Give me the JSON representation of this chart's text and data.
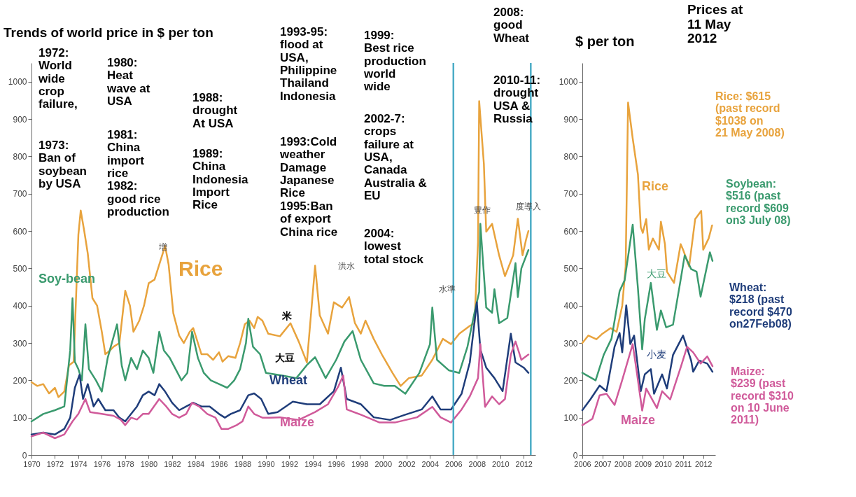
{
  "chart_data": [
    {
      "type": "line",
      "title": "Trends of world price in $ per ton",
      "xlim": [
        1970,
        2013
      ],
      "xticks": [
        1970,
        1972,
        1974,
        1976,
        1978,
        1980,
        1982,
        1984,
        1986,
        1988,
        1990,
        1992,
        1994,
        1996,
        1998,
        2000,
        2002,
        2004,
        2006,
        2008,
        2010,
        2012
      ],
      "ylim": [
        0,
        1050
      ],
      "yticks": [
        0,
        100,
        200,
        300,
        400,
        500,
        600,
        700,
        800,
        900,
        1000
      ],
      "series": [
        {
          "name": "Rice",
          "color": "#e8a33d",
          "x": [
            1970,
            1970.5,
            1971,
            1971.5,
            1972,
            1972.3,
            1972.8,
            1973.2,
            1973.6,
            1974,
            1974.2,
            1974.5,
            1974.8,
            1975.2,
            1975.6,
            1976,
            1976.3,
            1976.7,
            1977,
            1977.5,
            1978,
            1978.4,
            1978.7,
            1979.2,
            1979.6,
            1980,
            1980.5,
            1981,
            1981.4,
            1981.7,
            1982.1,
            1982.6,
            1983,
            1983.5,
            1983.8,
            1984.2,
            1984.5,
            1985,
            1985.5,
            1986,
            1986.3,
            1986.8,
            1987.4,
            1987.8,
            1988.2,
            1988.6,
            1989,
            1989.3,
            1989.7,
            1990.2,
            1991.2,
            1992.1,
            1992.8,
            1993.5,
            1994.2,
            1994.6,
            1995.3,
            1995.8,
            1996.5,
            1997.1,
            1997.6,
            1998.1,
            1998.5,
            1999.2,
            1999.9,
            2000.8,
            2001.5,
            2002.2,
            2003.3,
            2004.2,
            2005.1,
            2005.8,
            2006.5,
            2007.4,
            2007.8,
            2008.1,
            2008.2,
            2008.6,
            2008.8,
            2009.3,
            2009.9,
            2010.4,
            2011.1,
            2011.5,
            2011.9,
            2012.2,
            2012.4
          ],
          "values": [
            195,
            185,
            190,
            165,
            180,
            155,
            170,
            240,
            250,
            590,
            655,
            600,
            540,
            420,
            400,
            330,
            270,
            280,
            290,
            300,
            440,
            400,
            330,
            360,
            400,
            460,
            470,
            520,
            560,
            510,
            380,
            320,
            300,
            330,
            340,
            300,
            270,
            270,
            255,
            275,
            250,
            265,
            260,
            300,
            350,
            360,
            340,
            370,
            360,
            325,
            318,
            353,
            304,
            248,
            507,
            374,
            325,
            409,
            395,
            423,
            353,
            325,
            360,
            311,
            269,
            220,
            185,
            206,
            213,
            255,
            311,
            297,
            325,
            346,
            353,
            570,
            948,
            780,
            598,
            619,
            535,
            479,
            535,
            633,
            535,
            577,
            600
          ]
        },
        {
          "name": "Soy-bean",
          "color": "#3a9a6e",
          "x": [
            1970,
            1971,
            1972,
            1972.8,
            1973.3,
            1973.5,
            1973.7,
            1974,
            1974.3,
            1974.6,
            1974.9,
            1975.5,
            1976,
            1976.5,
            1977.3,
            1977.7,
            1978,
            1978.5,
            1979,
            1979.5,
            1980,
            1980.4,
            1980.9,
            1981.3,
            1981.8,
            1982.3,
            1982.8,
            1983.3,
            1983.7,
            1984.2,
            1984.7,
            1985.3,
            1986,
            1986.7,
            1987.3,
            1987.8,
            1988.3,
            1988.5,
            1988.9,
            1989.5,
            1990,
            1991.4,
            1992.6,
            1993.5,
            1994.2,
            1995.1,
            1996,
            1996.7,
            1997.4,
            1998.1,
            1999.2,
            2000.1,
            2001,
            2001.9,
            2003.1,
            2004,
            2004.2,
            2004.6,
            2005.6,
            2006.5,
            2007.2,
            2007.8,
            2008.2,
            2008.3,
            2008.8,
            2009.3,
            2009.5,
            2009.9,
            2010.6,
            2011.3,
            2011.5,
            2011.8,
            2012.4
          ],
          "values": [
            90,
            110,
            120,
            130,
            280,
            420,
            250,
            230,
            200,
            350,
            230,
            200,
            170,
            260,
            350,
            240,
            200,
            260,
            230,
            280,
            260,
            220,
            330,
            280,
            260,
            230,
            200,
            220,
            330,
            260,
            220,
            200,
            190,
            180,
            200,
            230,
            300,
            365,
            290,
            270,
            220,
            213,
            206,
            241,
            262,
            206,
            255,
            304,
            332,
            255,
            192,
            185,
            185,
            164,
            220,
            297,
            395,
            255,
            227,
            220,
            290,
            381,
            437,
            619,
            395,
            381,
            444,
            353,
            367,
            514,
            423,
            500,
            549
          ]
        },
        {
          "name": "Wheat",
          "color": "#1f3d7a",
          "x": [
            1970,
            1971,
            1972,
            1972.8,
            1973.3,
            1973.7,
            1974.1,
            1974.4,
            1974.8,
            1975.3,
            1975.7,
            1976.3,
            1977,
            1977.5,
            1978,
            1978.5,
            1979,
            1979.5,
            1980,
            1980.5,
            1980.9,
            1981.4,
            1982,
            1982.6,
            1983.2,
            1983.8,
            1984.5,
            1985.2,
            1986,
            1986.5,
            1987,
            1987.8,
            1988.5,
            1989,
            1989.6,
            1990.2,
            1991,
            1992.3,
            1993.5,
            1994.6,
            1995.8,
            1996.4,
            1996.9,
            1998.1,
            1999.2,
            2000.6,
            2001.9,
            2003.3,
            2004.2,
            2004.9,
            2005.8,
            2006.7,
            2007.4,
            2008,
            2008.3,
            2008.8,
            2009.5,
            2010.2,
            2010.9,
            2011.3,
            2012,
            2012.4
          ],
          "values": [
            55,
            60,
            55,
            70,
            100,
            180,
            215,
            150,
            190,
            130,
            150,
            120,
            120,
            100,
            90,
            110,
            130,
            160,
            170,
            160,
            190,
            170,
            140,
            120,
            130,
            140,
            130,
            130,
            110,
            100,
            110,
            120,
            160,
            165,
            150,
            110,
            115,
            143,
            136,
            136,
            171,
            234,
            150,
            136,
            101,
            94,
            108,
            122,
            157,
            122,
            122,
            164,
            248,
            409,
            283,
            234,
            206,
            171,
            325,
            248,
            234,
            220
          ]
        },
        {
          "name": "Maize",
          "color": "#d05a9a",
          "x": [
            1970,
            1971,
            1972,
            1972.8,
            1973.5,
            1974,
            1974.6,
            1975,
            1976,
            1977,
            1977.6,
            1978,
            1978.5,
            1979,
            1979.5,
            1980,
            1980.9,
            1981.5,
            1982,
            1982.6,
            1983.2,
            1983.7,
            1984.3,
            1985,
            1985.7,
            1986.2,
            1986.8,
            1987.5,
            1988,
            1988.5,
            1989,
            1989.7,
            1990.3,
            1991.2,
            1992.8,
            1994.2,
            1995.3,
            1996.2,
            1996.6,
            1996.9,
            1998.1,
            1999.7,
            2001,
            2002.9,
            2004.2,
            2004.9,
            2005.8,
            2006.7,
            2007.4,
            2008.1,
            2008.3,
            2008.7,
            2009.3,
            2009.9,
            2010.4,
            2010.9,
            2011.3,
            2011.8,
            2012.4
          ],
          "values": [
            50,
            60,
            45,
            55,
            90,
            110,
            150,
            115,
            110,
            105,
            95,
            80,
            100,
            95,
            110,
            110,
            150,
            130,
            110,
            100,
            110,
            140,
            130,
            110,
            100,
            70,
            70,
            80,
            90,
            130,
            110,
            100,
            100,
            101,
            94,
            115,
            136,
            185,
            213,
            122,
            108,
            87,
            87,
            101,
            129,
            101,
            87,
            122,
            157,
            206,
            297,
            129,
            157,
            136,
            150,
            269,
            304,
            255,
            269
          ]
        }
      ],
      "ref_lines": [
        {
          "axis": "x",
          "value": 2006,
          "color": "#4bacc6"
        },
        {
          "axis": "x",
          "value": 2012.6,
          "color": "#4bacc6"
        }
      ],
      "annotations": [
        "1972:\nWorld\nwide\ncrop\nfailure,",
        "1973:\nBan of\nsoybean\nby USA",
        "1980:\nHeat\nwave at\nUSA",
        "1981:\nChina\nimport\nrice\n1982:\ngood rice\nproduction",
        "1988:\ndrought\nAt USA",
        "1989:\nChina\nIndonesia\nImport\nRice",
        "1993-95:\nflood at\nUSA,\nPhilippine\nThailand\nIndonesia",
        "1993:Cold\nweather\nDamage\nJapanese\nRice\n1995:Ban\nof export\nChina rice",
        "1999:\nBest rice\nproduction\nworld\nwide",
        "2002-7:\ncrops\nfailure at\nUSA,\nCanada\nAustralia &\nEU",
        "2004:\nlowest\ntotal stock",
        "2008:\ngood\nWheat",
        "2010-11:\ndrought\nUSA &\nRussia",
        "米",
        "大豆",
        "増",
        "洪水",
        "水準",
        "豊作",
        "度導入"
      ]
    },
    {
      "type": "line",
      "title": "Prices at\n11 May\n2012",
      "ylabel": "$ per ton",
      "xlim": [
        2006,
        2012.6
      ],
      "xticks": [
        2006,
        2007,
        2008,
        2009,
        2010,
        2011,
        2012
      ],
      "ylim": [
        0,
        1050
      ],
      "yticks": [
        0,
        100,
        200,
        300,
        400,
        500,
        600,
        700,
        800,
        900,
        1000
      ],
      "series": [
        {
          "name": "Rice",
          "color": "#e8a33d",
          "x": [
            2006,
            2006.3,
            2006.7,
            2007,
            2007.4,
            2007.7,
            2007.98,
            2008.15,
            2008.27,
            2008.5,
            2008.76,
            2008.9,
            2009,
            2009.17,
            2009.3,
            2009.5,
            2009.8,
            2009.9,
            2010.1,
            2010.2,
            2010.55,
            2010.88,
            2011,
            2011.3,
            2011.6,
            2011.9,
            2012,
            2012.27,
            2012.44
          ],
          "values": [
            300,
            320,
            310,
            325,
            340,
            330,
            400,
            505,
            944,
            848,
            751,
            610,
            595,
            632,
            550,
            580,
            550,
            625,
            565,
            491,
            461,
            565,
            550,
            505,
            632,
            654,
            550,
            580,
            615
          ]
        },
        {
          "name": "大豆",
          "color": "#3a9a6e",
          "x": [
            2006,
            2006.66,
            2007.06,
            2007.45,
            2007.85,
            2008.1,
            2008.5,
            2008.76,
            2008.97,
            2009.1,
            2009.4,
            2009.7,
            2009.9,
            2010.16,
            2010.5,
            2010.9,
            2011.08,
            2011.4,
            2011.67,
            2011.87,
            2012.33,
            2012.46
          ],
          "values": [
            220,
            200,
            268,
            312,
            439,
            468,
            617,
            446,
            283,
            364,
            461,
            335,
            387,
            342,
            349,
            476,
            535,
            498,
            491,
            424,
            543,
            520
          ]
        },
        {
          "name": "小麦",
          "color": "#1f3d7a",
          "x": [
            2006,
            2006.4,
            2006.86,
            2007.2,
            2007.6,
            2007.85,
            2007.98,
            2008.18,
            2008.38,
            2008.57,
            2008.9,
            2009.1,
            2009.4,
            2009.56,
            2009.96,
            2010.2,
            2010.5,
            2011,
            2011.4,
            2011.5,
            2011.8,
            2012.2,
            2012.46
          ],
          "values": [
            120,
            149,
            186,
            171,
            290,
            327,
            275,
            401,
            297,
            320,
            171,
            216,
            230,
            164,
            216,
            178,
            268,
            320,
            253,
            223,
            253,
            245,
            223
          ]
        },
        {
          "name": "Maize",
          "color": "#d05a9a",
          "x": [
            2006,
            2006.5,
            2006.86,
            2007.2,
            2007.6,
            2007.98,
            2008.5,
            2008.7,
            2008.97,
            2009.17,
            2009.7,
            2009.96,
            2010.36,
            2010.9,
            2011.2,
            2011.5,
            2011.87,
            2012.2,
            2012.46
          ],
          "values": [
            80,
            97,
            160,
            164,
            134,
            201,
            297,
            223,
            119,
            178,
            126,
            171,
            149,
            238,
            290,
            275,
            245,
            264,
            238
          ]
        }
      ],
      "annotations": [
        "Rice: $615\n(past record\n$1038 on\n21 May 2008)",
        "Soybean:\n$516 (past\nrecord $609\non3 July 08)",
        "Wheat:\n$218 (past\nrecord $470\non27Feb08)",
        "Maize:\n$239 (past\nrecord $310\non 10 June\n2011)"
      ]
    }
  ]
}
